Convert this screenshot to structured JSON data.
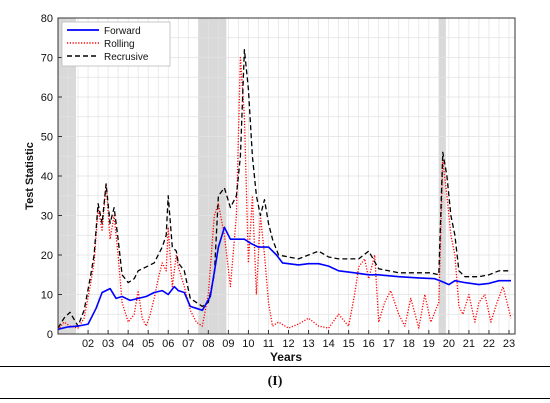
{
  "caption": "(I)",
  "chart_data": {
    "type": "line",
    "xlabel": "Years",
    "ylabel": "Test Statistic",
    "xlim": [
      2001.0,
      2023.8
    ],
    "ylim": [
      0,
      80
    ],
    "yticks": [
      0,
      10,
      20,
      30,
      40,
      50,
      60,
      70,
      80
    ],
    "xticks": [
      {
        "label": "02",
        "x": 2002.5
      },
      {
        "label": "03",
        "x": 2003.5
      },
      {
        "label": "04",
        "x": 2004.5
      },
      {
        "label": "05",
        "x": 2005.5
      },
      {
        "label": "06",
        "x": 2006.5
      },
      {
        "label": "07",
        "x": 2007.5
      },
      {
        "label": "08",
        "x": 2008.5
      },
      {
        "label": "09",
        "x": 2009.5
      },
      {
        "label": "10",
        "x": 2010.5
      },
      {
        "label": "11",
        "x": 2011.5
      },
      {
        "label": "12",
        "x": 2012.5
      },
      {
        "label": "13",
        "x": 2013.5
      },
      {
        "label": "14",
        "x": 2014.5
      },
      {
        "label": "15",
        "x": 2015.5
      },
      {
        "label": "16",
        "x": 2016.5
      },
      {
        "label": "17",
        "x": 2017.5
      },
      {
        "label": "18",
        "x": 2018.5
      },
      {
        "label": "19",
        "x": 2019.5
      },
      {
        "label": "20",
        "x": 2020.5
      },
      {
        "label": "21",
        "x": 2021.5
      },
      {
        "label": "22",
        "x": 2022.5
      },
      {
        "label": "23",
        "x": 2023.5
      }
    ],
    "grid": true,
    "legend_position": "top-left",
    "shaded_periods": [
      [
        2001.0,
        2001.9
      ],
      [
        2008.0,
        2009.4
      ],
      [
        2020.0,
        2020.35
      ]
    ],
    "series": [
      {
        "name": "Forward",
        "color": "#0000ff",
        "style": "solid",
        "x": [
          2001.0,
          2001.5,
          2002.0,
          2002.5,
          2002.9,
          2003.2,
          2003.6,
          2003.9,
          2004.2,
          2004.6,
          2005.0,
          2005.4,
          2005.8,
          2006.2,
          2006.5,
          2006.8,
          2007.0,
          2007.3,
          2007.6,
          2007.9,
          2008.2,
          2008.6,
          2009.0,
          2009.3,
          2009.6,
          2010.0,
          2010.3,
          2010.6,
          2011.0,
          2011.5,
          2011.9,
          2012.2,
          2013.0,
          2013.5,
          2014.0,
          2014.5,
          2015.0,
          2015.8,
          2016.5,
          2017.0,
          2018.0,
          2019.0,
          2019.8,
          2020.2,
          2020.5,
          2020.8,
          2021.3,
          2022.0,
          2022.5,
          2023.0,
          2023.6
        ],
        "y": [
          1.2,
          1.8,
          2.0,
          2.5,
          6.5,
          10.5,
          11.5,
          9.0,
          9.5,
          8.5,
          9.0,
          9.5,
          10.5,
          11.0,
          10.0,
          12.0,
          11.0,
          10.5,
          7.0,
          6.5,
          6.0,
          9.5,
          22.0,
          27.0,
          24.0,
          24.0,
          24.0,
          23.0,
          22.0,
          22.0,
          20.0,
          18.0,
          17.5,
          17.8,
          17.8,
          17.2,
          16.0,
          15.5,
          15.0,
          15.0,
          14.5,
          14.2,
          14.0,
          13.2,
          12.5,
          13.5,
          13.0,
          12.5,
          12.8,
          13.5,
          13.5
        ]
      },
      {
        "name": "Rolling",
        "color": "#ff0000",
        "style": "dotted",
        "x": [
          2001.0,
          2001.3,
          2001.6,
          2002.0,
          2002.3,
          2002.6,
          2002.8,
          2003.0,
          2003.2,
          2003.4,
          2003.6,
          2003.8,
          2004.0,
          2004.2,
          2004.5,
          2004.8,
          2005.0,
          2005.2,
          2005.4,
          2005.6,
          2005.8,
          2006.0,
          2006.2,
          2006.4,
          2006.5,
          2006.7,
          2006.9,
          2007.0,
          2007.3,
          2007.6,
          2007.9,
          2008.2,
          2008.5,
          2008.8,
          2009.0,
          2009.3,
          2009.6,
          2009.9,
          2010.1,
          2010.3,
          2010.5,
          2010.7,
          2010.9,
          2011.1,
          2011.3,
          2011.5,
          2011.7,
          2012.0,
          2012.5,
          2013.0,
          2013.5,
          2014.0,
          2014.5,
          2015.0,
          2015.5,
          2015.8,
          2016.0,
          2016.3,
          2016.5,
          2016.8,
          2017.0,
          2017.3,
          2017.6,
          2018.0,
          2018.3,
          2018.6,
          2019.0,
          2019.3,
          2019.6,
          2020.0,
          2020.2,
          2020.4,
          2020.6,
          2020.8,
          2021.0,
          2021.2,
          2021.5,
          2021.8,
          2022.0,
          2022.3,
          2022.6,
          2022.9,
          2023.2,
          2023.6
        ],
        "y": [
          1.0,
          3.0,
          2.0,
          1.5,
          4.0,
          12.0,
          18.0,
          32.0,
          26.0,
          38.0,
          24.0,
          30.0,
          20.0,
          8.0,
          3.0,
          5.0,
          11.0,
          4.0,
          2.0,
          5.0,
          9.0,
          14.0,
          18.0,
          16.0,
          27.0,
          12.0,
          20.0,
          17.0,
          12.0,
          6.0,
          3.0,
          2.0,
          10.0,
          30.0,
          33.0,
          25.0,
          12.0,
          30.0,
          70.0,
          55.0,
          18.0,
          35.0,
          10.0,
          30.0,
          20.0,
          8.0,
          2.0,
          3.0,
          1.5,
          2.5,
          4.0,
          2.0,
          1.5,
          5.0,
          2.0,
          10.0,
          17.0,
          19.0,
          14.0,
          20.0,
          3.0,
          8.0,
          11.0,
          5.0,
          2.0,
          9.0,
          1.5,
          10.0,
          3.0,
          8.0,
          44.0,
          35.0,
          25.0,
          20.0,
          7.0,
          5.0,
          10.0,
          3.0,
          8.0,
          10.0,
          3.0,
          8.0,
          12.0,
          4.0
        ]
      },
      {
        "name": "Recrusive",
        "color": "#000000",
        "style": "dashed",
        "x": [
          2001.0,
          2001.3,
          2001.6,
          2002.0,
          2002.3,
          2002.6,
          2002.8,
          2003.0,
          2003.2,
          2003.4,
          2003.6,
          2003.8,
          2004.0,
          2004.2,
          2004.5,
          2004.8,
          2005.0,
          2005.4,
          2005.8,
          2006.2,
          2006.4,
          2006.5,
          2006.7,
          2006.9,
          2007.0,
          2007.3,
          2007.6,
          2007.9,
          2008.2,
          2008.5,
          2008.8,
          2009.0,
          2009.3,
          2009.6,
          2009.9,
          2010.1,
          2010.3,
          2010.5,
          2010.7,
          2010.9,
          2011.1,
          2011.3,
          2011.5,
          2011.7,
          2012.0,
          2012.5,
          2013.0,
          2013.5,
          2014.0,
          2014.5,
          2015.0,
          2015.5,
          2016.0,
          2016.5,
          2017.0,
          2017.5,
          2018.0,
          2018.5,
          2019.0,
          2019.6,
          2020.0,
          2020.2,
          2020.4,
          2020.6,
          2020.8,
          2021.0,
          2021.3,
          2021.6,
          2022.0,
          2022.5,
          2023.0,
          2023.6
        ],
        "y": [
          1.5,
          4.0,
          5.5,
          2.0,
          6.0,
          14.0,
          20.0,
          33.0,
          28.0,
          38.0,
          28.0,
          32.0,
          24.0,
          15.0,
          13.0,
          14.0,
          16.0,
          17.0,
          18.0,
          22.0,
          25.0,
          35.0,
          22.0,
          21.0,
          18.0,
          16.0,
          9.0,
          8.0,
          7.0,
          8.0,
          15.0,
          35.0,
          37.0,
          32.0,
          35.0,
          45.0,
          72.0,
          62.0,
          45.0,
          35.0,
          30.0,
          34.0,
          28.0,
          24.0,
          20.0,
          19.5,
          19.0,
          20.0,
          21.0,
          19.5,
          19.0,
          19.0,
          19.0,
          21.0,
          16.5,
          16.0,
          15.5,
          15.5,
          15.5,
          15.5,
          15.0,
          46.0,
          40.0,
          30.0,
          25.0,
          16.0,
          14.5,
          14.5,
          14.5,
          15.0,
          16.0,
          16.0
        ]
      }
    ]
  }
}
